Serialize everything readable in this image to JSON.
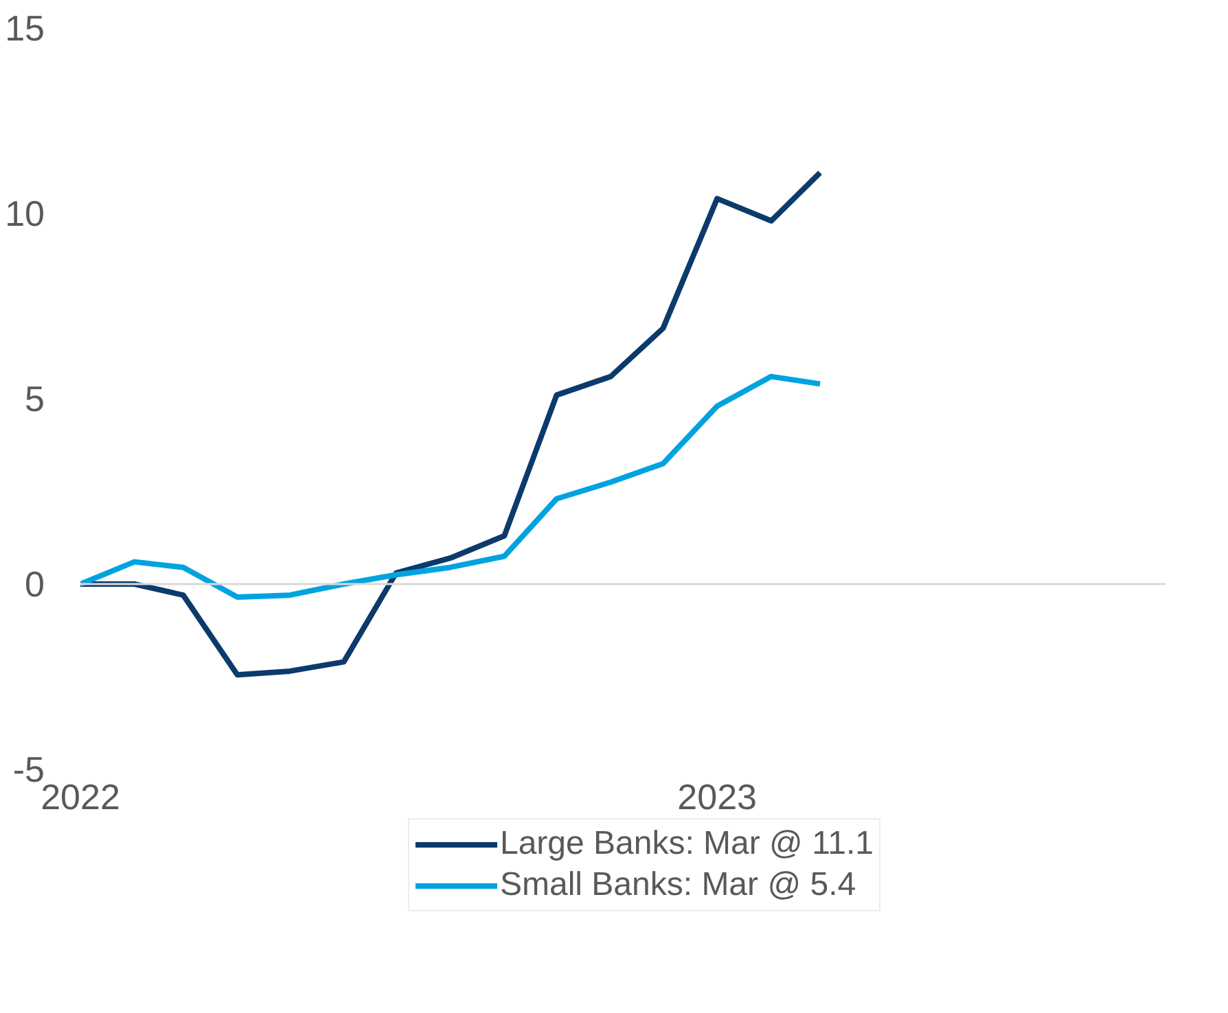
{
  "chart_data": {
    "type": "line",
    "x": [
      "2022-01",
      "2022-02",
      "2022-03",
      "2022-04",
      "2022-05",
      "2022-06",
      "2022-07",
      "2022-08",
      "2022-09",
      "2022-10",
      "2022-11",
      "2022-12",
      "2023-01",
      "2023-02",
      "2023-03"
    ],
    "series": [
      {
        "name": "Large Banks: Mar @ 11.1",
        "color": "#0b3a6b",
        "values": [
          0,
          0,
          -0.3,
          -2.45,
          -2.35,
          -2.1,
          0.3,
          0.7,
          1.3,
          5.1,
          5.6,
          6.9,
          10.4,
          9.8,
          11.1
        ]
      },
      {
        "name": "Small Banks: Mar @ 5.4",
        "color": "#00a3e0",
        "values": [
          0,
          0.6,
          0.45,
          -0.35,
          -0.3,
          0,
          0.25,
          0.45,
          0.75,
          2.3,
          2.75,
          3.25,
          4.8,
          5.6,
          5.4
        ]
      }
    ],
    "xlim": [
      "2022-01",
      "2023-09-15"
    ],
    "xticks": [
      {
        "value": "2022-01",
        "label": "2022"
      },
      {
        "value": "2023-01",
        "label": "2023"
      }
    ],
    "ylim": [
      -5,
      15
    ],
    "yticks": [
      -5,
      0,
      5,
      10,
      15
    ],
    "ref_lines": [
      {
        "axis": "y",
        "value": 0,
        "color": "#d9d9d9"
      }
    ],
    "grid": false,
    "legend": "bottom",
    "line_style": "solid",
    "marker": "none"
  }
}
